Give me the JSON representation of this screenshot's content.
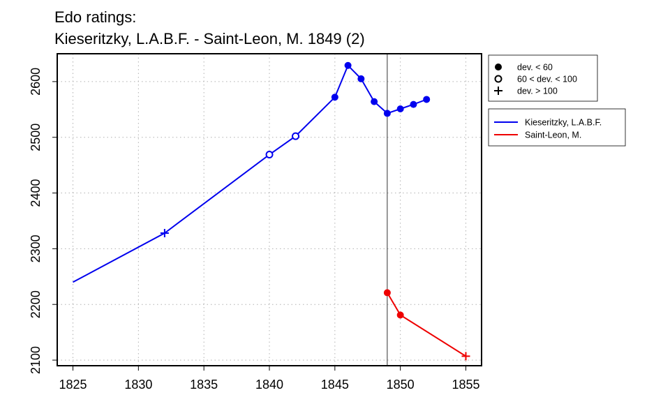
{
  "chart_data": {
    "type": "line",
    "title_line1": "Edo ratings:",
    "title_line2": "Kieseritzky, L.A.B.F. - Saint-Leon, M. 1849 (2)",
    "xlabel": "",
    "ylabel": "",
    "xlim": [
      1823.8,
      1856.2
    ],
    "ylim": [
      2090,
      2650
    ],
    "x_ticks": [
      1825,
      1830,
      1835,
      1840,
      1845,
      1850,
      1855
    ],
    "y_ticks": [
      2100,
      2200,
      2300,
      2400,
      2500,
      2600
    ],
    "grid": true,
    "vertical_marker_x": 1849,
    "series": [
      {
        "name": "Kieseritzky, L.A.B.F.",
        "color": "#0000ee",
        "points": [
          {
            "x": 1825,
            "y": 2240,
            "marker": "none"
          },
          {
            "x": 1832,
            "y": 2328,
            "marker": "plus"
          },
          {
            "x": 1840,
            "y": 2469,
            "marker": "open"
          },
          {
            "x": 1842,
            "y": 2502,
            "marker": "open"
          },
          {
            "x": 1845,
            "y": 2572,
            "marker": "filled"
          },
          {
            "x": 1846,
            "y": 2629,
            "marker": "filled"
          },
          {
            "x": 1847,
            "y": 2605,
            "marker": "filled"
          },
          {
            "x": 1848,
            "y": 2564,
            "marker": "filled"
          },
          {
            "x": 1849,
            "y": 2543,
            "marker": "filled"
          },
          {
            "x": 1850,
            "y": 2551,
            "marker": "filled"
          },
          {
            "x": 1851,
            "y": 2559,
            "marker": "filled"
          },
          {
            "x": 1852,
            "y": 2568,
            "marker": "filled"
          }
        ]
      },
      {
        "name": "Saint-Leon, M.",
        "color": "#ee0000",
        "points": [
          {
            "x": 1849,
            "y": 2221,
            "marker": "filled"
          },
          {
            "x": 1850,
            "y": 2181,
            "marker": "filled"
          },
          {
            "x": 1855,
            "y": 2107,
            "marker": "plus"
          }
        ]
      }
    ],
    "marker_legend": [
      {
        "symbol": "filled",
        "label": "dev. < 60"
      },
      {
        "symbol": "open",
        "label": "60 < dev. < 100"
      },
      {
        "symbol": "plus",
        "label": "dev. > 100"
      }
    ],
    "legend_placement": "right"
  }
}
